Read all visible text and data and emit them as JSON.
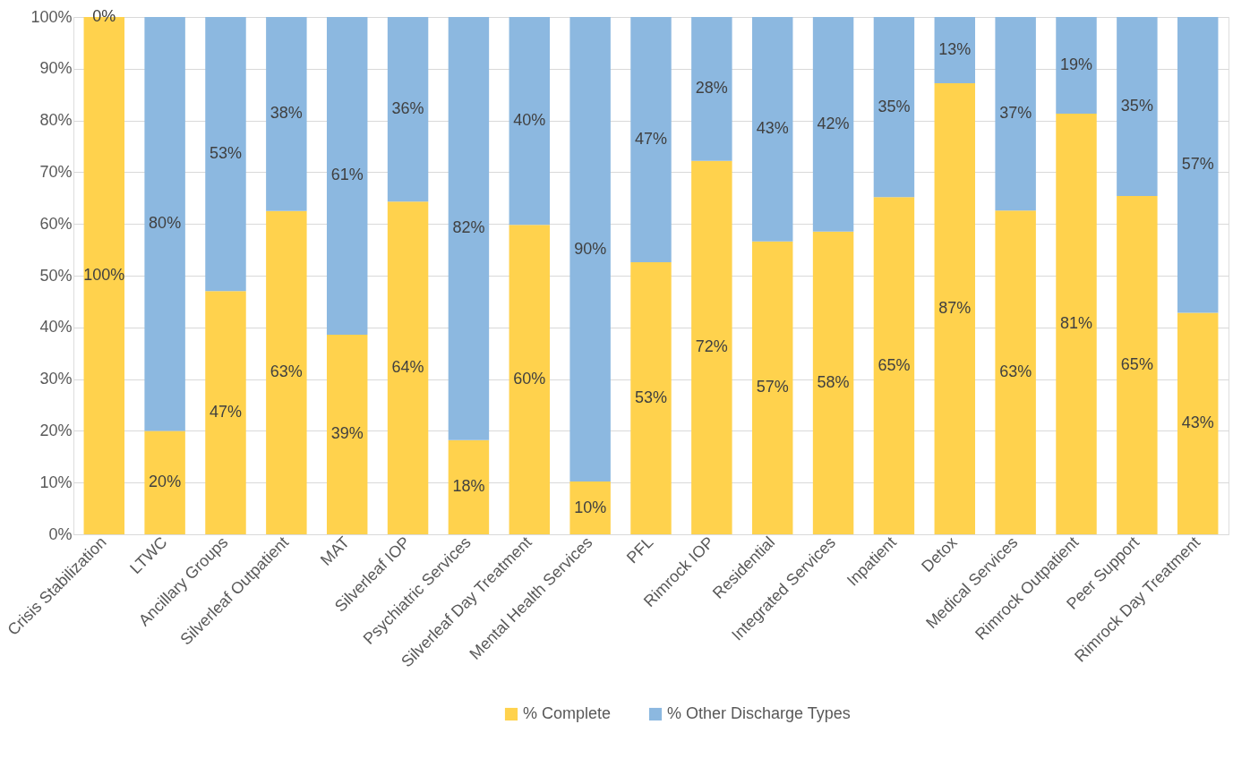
{
  "chart_data": {
    "type": "bar",
    "stacked": true,
    "categories": [
      "Crisis Stabilization",
      "LTWC",
      "Ancillary Groups",
      "Silverleaf Outpatient",
      "MAT",
      "Silverleaf IOP",
      "Psychiatric Services",
      "Silverleaf Day Treatment",
      "Mental Health Services",
      "PFL",
      "Rimrock IOP",
      "Residential",
      "Integrated Services",
      "Inpatient",
      "Detox",
      "Medical Services",
      "Rimrock Outpatient",
      "Peer Support",
      "Rimrock Day Treatment"
    ],
    "series": [
      {
        "name": "% Complete",
        "color": "#ffd24d",
        "values": [
          100,
          20,
          47,
          62.5,
          38.6,
          64.3,
          18.2,
          59.8,
          10.2,
          52.6,
          72.2,
          56.6,
          58.5,
          65.2,
          87.2,
          62.6,
          81.3,
          65.4,
          42.8
        ],
        "value_labels": [
          "100%",
          "20%",
          "47%",
          "63%",
          "39%",
          "64%",
          "18%",
          "60%",
          "10%",
          "53%",
          "72%",
          "57%",
          "58%",
          "65%",
          "87%",
          "63%",
          "81%",
          "65%",
          "43%"
        ]
      },
      {
        "name": "% Other Discharge Types",
        "color": "#8cb8e0",
        "values": [
          0,
          80,
          53,
          37.5,
          61.4,
          35.7,
          81.8,
          40.2,
          89.8,
          47.4,
          27.8,
          43.4,
          41.5,
          34.8,
          12.8,
          37.4,
          18.7,
          34.6,
          57.2
        ],
        "value_labels": [
          "0%",
          "80%",
          "53%",
          "38%",
          "61%",
          "36%",
          "82%",
          "40%",
          "90%",
          "47%",
          "28%",
          "43%",
          "42%",
          "35%",
          "13%",
          "37%",
          "19%",
          "35%",
          "57%"
        ]
      }
    ],
    "ylim": [
      0,
      100
    ],
    "yticks": [
      {
        "value": 0,
        "label": "0%"
      },
      {
        "value": 10,
        "label": "10%"
      },
      {
        "value": 20,
        "label": "20%"
      },
      {
        "value": 30,
        "label": "30%"
      },
      {
        "value": 40,
        "label": "40%"
      },
      {
        "value": 50,
        "label": "50%"
      },
      {
        "value": 60,
        "label": "60%"
      },
      {
        "value": 70,
        "label": "70%"
      },
      {
        "value": 80,
        "label": "80%"
      },
      {
        "value": 90,
        "label": "90%"
      },
      {
        "value": 100,
        "label": "100%"
      }
    ],
    "grid": "y",
    "legend": "bottom"
  }
}
